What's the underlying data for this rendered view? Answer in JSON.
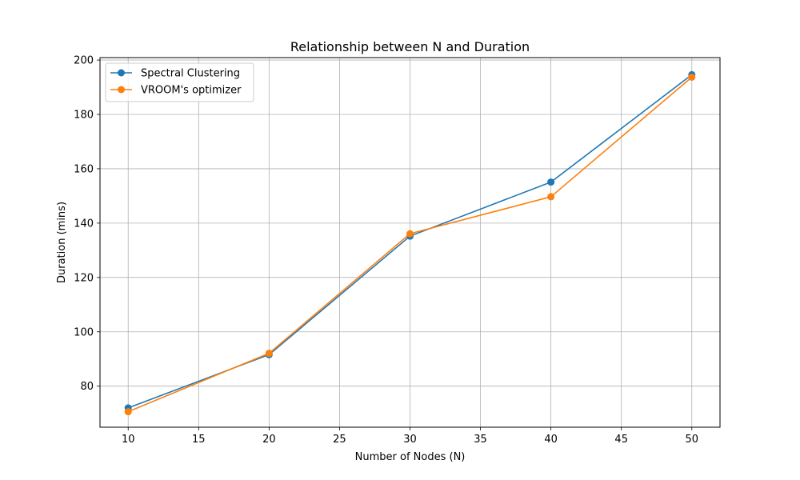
{
  "chart_data": {
    "type": "line",
    "title": "Relationship between N and Duration",
    "xlabel": "Number of Nodes (N)",
    "ylabel": "Duration (mins)",
    "x": [
      10,
      20,
      30,
      40,
      50
    ],
    "xlim": [
      8,
      52
    ],
    "ylim": [
      64.9,
      200.9
    ],
    "xticks": [
      10,
      15,
      20,
      25,
      30,
      35,
      40,
      45,
      50
    ],
    "yticks": [
      80,
      100,
      120,
      140,
      160,
      180,
      200
    ],
    "grid": true,
    "legend_position": "top-left",
    "series": [
      {
        "name": "Spectral Clustering",
        "color": "#1f77b4",
        "marker": "circle",
        "values": [
          72.0,
          91.6,
          135.2,
          155.1,
          194.6
        ]
      },
      {
        "name": "VROOM's optimizer",
        "color": "#ff7f0e",
        "marker": "circle",
        "values": [
          70.6,
          92.1,
          136.1,
          149.7,
          193.7
        ]
      }
    ]
  }
}
